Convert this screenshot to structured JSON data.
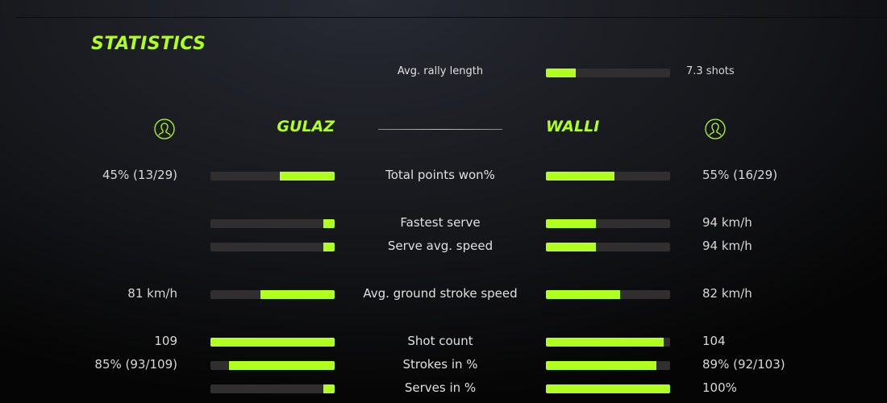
{
  "title": "STATISTICS",
  "accent": "#b0ff1e",
  "rally": {
    "label": "Avg. rally length",
    "value": "7.3 shots",
    "fill": 0.24
  },
  "players": {
    "left": "GULAZ",
    "right": "WALLI",
    "icon": "user-circle-icon"
  },
  "stats": [
    {
      "label": "Total points won%",
      "left": "45% (13/29)",
      "right": "55% (16/29)",
      "left_fill": 0.44,
      "right_fill": 0.55
    },
    {
      "label": "Fastest serve",
      "left": "",
      "right": "94 km/h",
      "left_fill": 0.09,
      "right_fill": 0.4
    },
    {
      "label": "Serve avg. speed",
      "left": "",
      "right": "94 km/h",
      "left_fill": 0.09,
      "right_fill": 0.4
    },
    {
      "label": "Avg. ground stroke speed",
      "left": "81 km/h",
      "right": "82 km/h",
      "left_fill": 0.6,
      "right_fill": 0.6
    },
    {
      "label": "Shot count",
      "left": "109",
      "right": "104",
      "left_fill": 1.0,
      "right_fill": 0.95
    },
    {
      "label": "Strokes in %",
      "left": "85% (93/109)",
      "right": "89% (92/103)",
      "left_fill": 0.85,
      "right_fill": 0.89
    },
    {
      "label": "Serves in %",
      "left": "",
      "right": "100%",
      "left_fill": 0.09,
      "right_fill": 1.0
    }
  ]
}
